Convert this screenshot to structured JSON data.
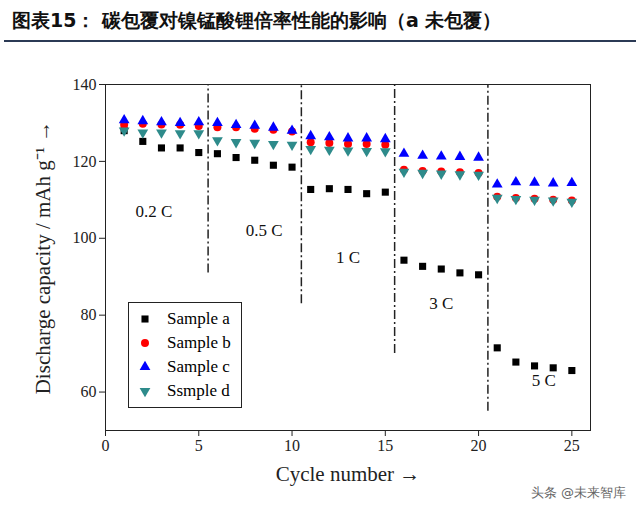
{
  "chart_data": {
    "type": "scatter",
    "title": "图表15： 碳包覆对镍锰酸锂倍率性能的影响（a 未包覆）",
    "x_label": "Cycle number",
    "y_label": "Discharge capacity / mAh g⁻¹",
    "x": [
      1,
      2,
      3,
      4,
      5,
      6,
      7,
      8,
      9,
      10,
      11,
      12,
      13,
      14,
      15,
      16,
      17,
      18,
      19,
      20,
      21,
      22,
      23,
      24,
      25
    ],
    "series": [
      {
        "name": "Sample a",
        "color": "#000000",
        "marker": "square",
        "values": [
          128,
          125.2,
          123.5,
          123.5,
          122.3,
          122,
          121,
          120.3,
          119,
          118.5,
          112.7,
          112.9,
          112.7,
          111.6,
          112,
          94.3,
          92.7,
          92,
          91,
          90.5,
          71.5,
          67.8,
          66.8,
          66.3,
          65.6
        ]
      },
      {
        "name": "Sample b",
        "color": "#ff0000",
        "marker": "circle",
        "values": [
          129.5,
          129.8,
          129.6,
          129.5,
          129.2,
          128.9,
          128.9,
          128.5,
          128.2,
          127.8,
          125,
          124.8,
          124.5,
          124.5,
          124.3,
          117.8,
          117.5,
          117.4,
          117.2,
          117,
          110.8,
          110.5,
          110.3,
          110,
          109.8
        ]
      },
      {
        "name": "Sample c",
        "color": "#0000ff",
        "marker": "triangle",
        "values": [
          130.7,
          130.5,
          130.2,
          130,
          130.2,
          130,
          129.5,
          129.3,
          128.8,
          128,
          126.6,
          126.3,
          126,
          126,
          125.8,
          122,
          121.5,
          121.3,
          121.2,
          121,
          114,
          114.6,
          114.5,
          114.3,
          114.4
        ]
      },
      {
        "name": "Ssmple d",
        "color": "#2e8b8b",
        "marker": "triangle-down",
        "values": [
          128,
          127.5,
          127.5,
          127.3,
          127.3,
          125.5,
          125,
          124.8,
          124.5,
          124.3,
          123.2,
          123,
          122.8,
          122.7,
          122.6,
          117.3,
          117,
          116.8,
          116.6,
          116.5,
          110.5,
          110.2,
          110,
          109.8,
          109.5
        ]
      }
    ],
    "xlim": [
      0,
      26
    ],
    "xticks": [
      0,
      5,
      10,
      15,
      20,
      25
    ],
    "ylim": [
      50,
      140
    ],
    "yticks": [
      60,
      80,
      100,
      120,
      140
    ],
    "grid": false,
    "legend": "bottom-left",
    "dividers": [
      {
        "x": 5.5,
        "y1": 91,
        "y2": 140
      },
      {
        "x": 10.5,
        "y1": 83,
        "y2": 140
      },
      {
        "x": 15.5,
        "y1": 70,
        "y2": 140
      },
      {
        "x": 20.5,
        "y1": 55,
        "y2": 140
      }
    ],
    "annotations": [
      {
        "text": "0.2 C",
        "x": 2.6,
        "y": 107
      },
      {
        "text": "0.5 C",
        "x": 8.5,
        "y": 102
      },
      {
        "text": "1 C",
        "x": 13,
        "y": 95
      },
      {
        "text": "3 C",
        "x": 18,
        "y": 83
      },
      {
        "text": "5 C",
        "x": 23.5,
        "y": 63
      }
    ],
    "source": "头条 @未来智库"
  }
}
